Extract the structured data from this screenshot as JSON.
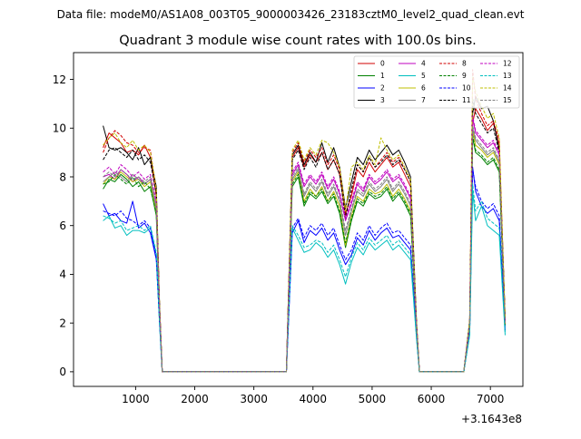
{
  "suptitle": "Data file: modeM0/AS1A08_003T05_9000003426_23183cztM0_level2_quad_clean.evt",
  "chart_data": {
    "type": "line",
    "title": "Quadrant 3 module wise count rates with 100.0s bins.",
    "xlabel": "",
    "ylabel": "",
    "x_offset_label": "+3.1643e8",
    "xlim": [
      -50,
      7550
    ],
    "ylim": [
      -0.6,
      13.1
    ],
    "x_ticks": [
      1000,
      2000,
      3000,
      4000,
      5000,
      6000,
      7000
    ],
    "y_ticks": [
      0,
      2,
      4,
      6,
      8,
      10,
      12
    ],
    "grid": false,
    "legend_position": "top-right",
    "legend_columns": 4,
    "x": [
      450,
      550,
      650,
      750,
      850,
      950,
      1050,
      1150,
      1250,
      1350,
      1400,
      1450,
      3550,
      3650,
      3750,
      3850,
      3950,
      4050,
      4150,
      4250,
      4350,
      4450,
      4550,
      4650,
      4750,
      4850,
      4950,
      5050,
      5150,
      5250,
      5350,
      5450,
      5550,
      5650,
      5750,
      5800,
      5850,
      6550,
      6650,
      6700,
      6750,
      6850,
      6950,
      7050,
      7150,
      7250
    ],
    "series": [
      {
        "name": "0",
        "color": "#d00000",
        "dash": "solid",
        "values": [
          9.2,
          9.8,
          9.6,
          9.4,
          9.0,
          9.1,
          8.9,
          9.3,
          8.8,
          7.2,
          3.0,
          0,
          0,
          8.8,
          9.2,
          8.4,
          8.9,
          8.6,
          9.0,
          8.3,
          8.7,
          8.1,
          6.5,
          7.2,
          8.3,
          8.0,
          8.6,
          8.2,
          8.5,
          8.8,
          8.4,
          8.6,
          8.1,
          7.6,
          2.0,
          0,
          0,
          0,
          2.0,
          10.2,
          10.8,
          10.4,
          9.9,
          10.2,
          9.3,
          2.1
        ]
      },
      {
        "name": "1",
        "color": "#008000",
        "dash": "solid",
        "values": [
          7.5,
          7.9,
          7.8,
          8.1,
          7.9,
          7.6,
          7.8,
          7.4,
          7.6,
          6.4,
          2.8,
          0,
          0,
          7.6,
          8.0,
          6.8,
          7.3,
          7.1,
          7.4,
          6.9,
          7.2,
          6.5,
          5.1,
          6.2,
          7.0,
          6.8,
          7.3,
          7.1,
          7.2,
          7.5,
          7.0,
          7.3,
          6.9,
          6.4,
          1.8,
          0,
          0,
          0,
          1.8,
          9.6,
          9.0,
          8.8,
          8.5,
          8.7,
          8.2,
          1.9
        ]
      },
      {
        "name": "2",
        "color": "#0000ff",
        "dash": "solid",
        "values": [
          6.9,
          6.4,
          6.5,
          6.2,
          6.1,
          7.0,
          5.9,
          6.1,
          5.7,
          4.6,
          2.3,
          0,
          0,
          5.7,
          6.2,
          5.3,
          5.8,
          5.6,
          5.9,
          5.4,
          5.7,
          5.0,
          4.4,
          4.8,
          5.5,
          5.2,
          5.8,
          5.4,
          5.7,
          5.9,
          5.5,
          5.6,
          5.3,
          5.0,
          1.5,
          0,
          0,
          0,
          1.6,
          8.4,
          7.4,
          6.8,
          6.5,
          6.7,
          6.2,
          1.7
        ]
      },
      {
        "name": "3",
        "color": "#000000",
        "dash": "solid",
        "values": [
          10.1,
          9.2,
          9.1,
          9.2,
          9.0,
          8.7,
          9.2,
          8.5,
          8.8,
          7.6,
          3.1,
          0,
          0,
          8.9,
          9.3,
          8.5,
          9.0,
          8.6,
          9.4,
          8.6,
          9.2,
          8.4,
          6.7,
          7.8,
          8.8,
          8.5,
          9.1,
          8.7,
          9.0,
          9.3,
          8.9,
          9.1,
          8.6,
          8.0,
          2.1,
          0,
          0,
          0,
          2.1,
          10.6,
          11.3,
          10.8,
          10.9,
          10.3,
          9.1,
          2.2
        ]
      },
      {
        "name": "4",
        "color": "#bf00bf",
        "dash": "solid",
        "values": [
          8.0,
          8.1,
          7.9,
          8.3,
          8.1,
          7.8,
          8.0,
          7.7,
          7.9,
          6.8,
          2.9,
          0,
          0,
          8.1,
          8.5,
          7.6,
          8.0,
          7.7,
          8.1,
          7.5,
          7.9,
          7.3,
          6.2,
          6.9,
          7.7,
          7.4,
          8.0,
          7.7,
          7.9,
          8.2,
          7.8,
          8.0,
          7.6,
          7.1,
          1.9,
          0,
          0,
          0,
          1.9,
          10.4,
          9.8,
          9.5,
          9.2,
          9.4,
          8.9,
          2.0
        ]
      },
      {
        "name": "5",
        "color": "#00bfbf",
        "dash": "solid",
        "values": [
          6.2,
          6.4,
          5.9,
          6.0,
          5.6,
          5.8,
          5.8,
          5.7,
          5.9,
          4.8,
          2.2,
          0,
          0,
          5.9,
          5.4,
          4.9,
          5.0,
          5.3,
          5.1,
          4.7,
          5.0,
          4.4,
          3.6,
          4.5,
          5.1,
          4.8,
          5.3,
          5.0,
          5.2,
          5.4,
          5.0,
          5.2,
          4.9,
          4.6,
          1.4,
          0,
          0,
          0,
          1.5,
          7.4,
          6.2,
          6.8,
          6.0,
          5.8,
          5.6,
          1.5
        ]
      },
      {
        "name": "6",
        "color": "#bfbf00",
        "dash": "solid",
        "values": [
          7.7,
          8.0,
          7.9,
          8.2,
          8.0,
          7.8,
          7.9,
          7.6,
          7.8,
          6.6,
          2.8,
          0,
          0,
          7.8,
          8.2,
          7.0,
          7.5,
          7.2,
          7.6,
          7.0,
          7.4,
          6.8,
          5.2,
          6.4,
          7.2,
          7.0,
          7.5,
          7.3,
          7.4,
          7.7,
          7.2,
          7.5,
          7.1,
          6.6,
          1.8,
          0,
          0,
          0,
          1.8,
          9.9,
          9.3,
          9.1,
          8.8,
          9.0,
          8.5,
          1.9
        ]
      },
      {
        "name": "7",
        "color": "#808080",
        "dash": "solid",
        "values": [
          7.8,
          8.0,
          8.2,
          8.0,
          7.8,
          8.1,
          7.9,
          7.7,
          7.9,
          6.7,
          2.9,
          0,
          0,
          7.9,
          8.3,
          7.2,
          7.7,
          7.4,
          7.8,
          7.2,
          7.6,
          7.0,
          5.6,
          6.6,
          7.4,
          7.2,
          7.7,
          7.4,
          7.6,
          7.9,
          7.4,
          7.7,
          7.3,
          6.8,
          1.9,
          0,
          0,
          0,
          1.9,
          10.0,
          9.5,
          9.2,
          8.9,
          9.1,
          8.6,
          2.0
        ]
      },
      {
        "name": "8",
        "color": "#d00000",
        "dash": "dashed",
        "values": [
          9.0,
          9.6,
          9.9,
          9.7,
          9.4,
          9.3,
          9.0,
          9.2,
          9.1,
          7.4,
          3.0,
          0,
          0,
          9.0,
          9.4,
          8.6,
          9.1,
          8.8,
          9.2,
          8.5,
          8.9,
          8.3,
          6.4,
          7.4,
          8.5,
          8.2,
          8.8,
          8.4,
          8.7,
          9.0,
          8.6,
          8.8,
          8.3,
          7.8,
          2.0,
          0,
          0,
          0,
          2.0,
          12.4,
          11.2,
          10.6,
          10.1,
          10.3,
          9.5,
          2.1
        ]
      },
      {
        "name": "9",
        "color": "#008000",
        "dash": "dashed",
        "values": [
          7.7,
          7.8,
          8.1,
          7.9,
          7.7,
          8.0,
          7.6,
          7.8,
          7.5,
          6.5,
          2.8,
          0,
          0,
          7.7,
          8.1,
          6.9,
          7.4,
          7.2,
          7.5,
          7.0,
          7.3,
          6.6,
          5.3,
          6.3,
          7.1,
          6.9,
          7.4,
          7.2,
          7.3,
          7.6,
          7.1,
          7.4,
          7.0,
          6.5,
          1.8,
          0,
          0,
          0,
          1.8,
          9.7,
          9.1,
          8.9,
          8.6,
          8.8,
          8.3,
          1.9
        ]
      },
      {
        "name": "10",
        "color": "#0000ff",
        "dash": "dashed",
        "values": [
          6.6,
          6.5,
          6.4,
          6.6,
          6.3,
          6.2,
          6.0,
          6.2,
          5.9,
          4.7,
          2.3,
          0,
          0,
          5.9,
          6.3,
          5.5,
          6.0,
          5.8,
          6.1,
          5.6,
          5.9,
          5.2,
          4.6,
          5.0,
          5.7,
          5.4,
          6.0,
          5.6,
          5.9,
          6.1,
          5.7,
          5.8,
          5.5,
          5.2,
          1.5,
          0,
          0,
          0,
          1.6,
          8.3,
          7.6,
          7.0,
          6.7,
          6.9,
          6.4,
          1.7
        ]
      },
      {
        "name": "11",
        "color": "#000000",
        "dash": "dashed",
        "values": [
          8.7,
          9.1,
          9.2,
          9.0,
          8.8,
          9.1,
          8.7,
          8.9,
          8.6,
          7.3,
          3.0,
          0,
          0,
          8.7,
          9.1,
          8.3,
          8.8,
          8.4,
          9.0,
          8.3,
          8.7,
          8.1,
          6.3,
          7.5,
          8.5,
          8.2,
          8.8,
          8.4,
          8.6,
          8.9,
          8.5,
          8.7,
          8.3,
          7.8,
          2.0,
          0,
          0,
          0,
          2.0,
          11.2,
          10.6,
          10.2,
          9.8,
          10.0,
          9.0,
          2.1
        ]
      },
      {
        "name": "12",
        "color": "#bf00bf",
        "dash": "dashed",
        "values": [
          8.2,
          8.4,
          8.1,
          8.5,
          8.3,
          8.0,
          8.2,
          7.9,
          8.1,
          7.0,
          2.9,
          0,
          0,
          8.2,
          8.6,
          7.7,
          8.1,
          7.8,
          8.2,
          7.6,
          8.0,
          7.4,
          6.3,
          7.0,
          7.8,
          7.5,
          8.1,
          7.8,
          8.0,
          8.3,
          7.9,
          8.1,
          7.7,
          7.2,
          1.9,
          0,
          0,
          0,
          1.9,
          10.5,
          9.9,
          9.6,
          9.3,
          9.5,
          9.0,
          2.0
        ]
      },
      {
        "name": "13",
        "color": "#00bfbf",
        "dash": "dashed",
        "values": [
          6.4,
          6.3,
          6.1,
          6.2,
          5.8,
          5.9,
          6.0,
          5.8,
          6.0,
          4.9,
          2.2,
          0,
          0,
          6.0,
          5.6,
          5.1,
          5.2,
          5.4,
          5.3,
          4.9,
          5.2,
          4.6,
          3.9,
          4.7,
          5.3,
          5.0,
          5.5,
          5.2,
          5.4,
          5.6,
          5.2,
          5.4,
          5.1,
          4.8,
          1.4,
          0,
          0,
          0,
          1.5,
          7.7,
          6.6,
          7.0,
          6.3,
          6.1,
          5.9,
          1.6
        ]
      },
      {
        "name": "14",
        "color": "#bfbf00",
        "dash": "dashed",
        "values": [
          9.3,
          9.6,
          9.8,
          9.4,
          9.2,
          9.5,
          9.1,
          9.3,
          9.0,
          7.5,
          3.1,
          0,
          0,
          9.1,
          9.5,
          8.7,
          9.2,
          8.9,
          9.5,
          9.4,
          9.0,
          8.4,
          6.6,
          8.4,
          8.6,
          8.3,
          8.9,
          8.5,
          9.6,
          9.1,
          8.7,
          8.9,
          8.4,
          7.9,
          2.1,
          0,
          0,
          0,
          2.1,
          12.1,
          11.5,
          10.9,
          10.4,
          10.6,
          9.6,
          2.2
        ]
      },
      {
        "name": "15",
        "color": "#808080",
        "dash": "dashed",
        "values": [
          8.0,
          8.2,
          8.0,
          8.3,
          8.1,
          7.9,
          8.0,
          7.8,
          8.0,
          6.8,
          2.9,
          0,
          0,
          8.0,
          8.4,
          7.3,
          7.8,
          7.5,
          7.9,
          7.3,
          7.7,
          7.1,
          5.8,
          6.7,
          7.5,
          7.3,
          7.8,
          7.5,
          7.7,
          8.0,
          7.5,
          7.8,
          7.4,
          6.9,
          1.9,
          0,
          0,
          0,
          1.9,
          10.1,
          9.6,
          9.3,
          9.0,
          9.2,
          8.7,
          2.0
        ]
      }
    ]
  }
}
